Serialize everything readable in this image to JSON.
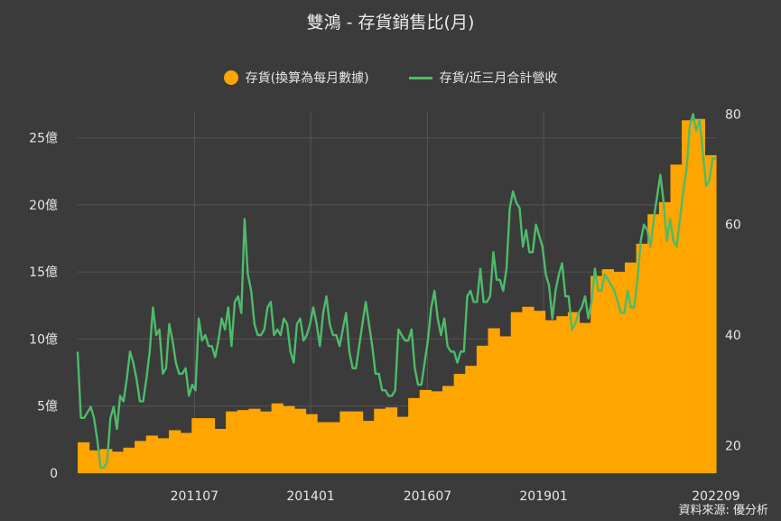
{
  "chart_data": {
    "type": "bar+line",
    "title": "雙鴻 - 存貨銷售比(月)",
    "source": "資料來源: 優分析",
    "colors": {
      "bar": "#ffa500",
      "line": "#4dbb6a",
      "background": "#3b3b3b",
      "grid": "#555555"
    },
    "legend": {
      "position": "top-center",
      "items": [
        "存貨(換算為每月數據)",
        "存貨/近三月合計營收"
      ]
    },
    "x_tick_labels": [
      "201107",
      "201401",
      "201607",
      "201901",
      "202209"
    ],
    "y_left": {
      "range": [
        0,
        28
      ],
      "ticks": [
        0,
        5,
        10,
        15,
        20,
        25
      ],
      "tick_labels": [
        "0",
        "5億",
        "10億",
        "15億",
        "20億",
        "25億"
      ]
    },
    "y_right": {
      "range": [
        15,
        83
      ],
      "ticks": [
        20,
        40,
        60,
        80
      ],
      "tick_labels": [
        "20",
        "40",
        "60",
        "80"
      ]
    },
    "series": [
      {
        "name": "存貨(換算為每月數據)",
        "kind": "bar-quarterly",
        "axis": "left",
        "values": [
          2.3,
          1.7,
          1.8,
          1.6,
          1.9,
          2.4,
          2.8,
          2.6,
          3.2,
          3.0,
          4.1,
          4.1,
          3.3,
          4.6,
          4.7,
          4.8,
          4.6,
          5.2,
          5.0,
          4.8,
          4.4,
          3.8,
          3.8,
          4.6,
          4.6,
          3.9,
          4.8,
          4.9,
          4.2,
          5.6,
          6.2,
          6.1,
          6.5,
          7.4,
          8.0,
          9.5,
          10.8,
          10.2,
          12.0,
          12.4,
          12.1,
          11.4,
          11.7,
          12.0,
          11.2,
          14.7,
          15.2,
          15.0,
          15.7,
          17.1,
          19.3,
          20.2,
          23.0,
          26.3,
          26.4,
          23.7
        ]
      },
      {
        "name": "存貨/近三月合計營收",
        "kind": "line-monthly",
        "axis": "right",
        "values": [
          37,
          25,
          25,
          26,
          27,
          25,
          21,
          16,
          16,
          17,
          25,
          27,
          23,
          29,
          28,
          32,
          37,
          35,
          32,
          28,
          28,
          32,
          37,
          45,
          40,
          41,
          33,
          34,
          42,
          39,
          35,
          33,
          33,
          34,
          29,
          31,
          30,
          43,
          39,
          40,
          38,
          38,
          36,
          39,
          43,
          41,
          45,
          38,
          46,
          47,
          44,
          61,
          51,
          48,
          42,
          40,
          40,
          41,
          45,
          46,
          40,
          41,
          40,
          43,
          42,
          37,
          35,
          42,
          43,
          39,
          40,
          42,
          45,
          42,
          38,
          44,
          47,
          42,
          40,
          40,
          38,
          41,
          44,
          37,
          34,
          34,
          38,
          42,
          46,
          42,
          38,
          33,
          33,
          30,
          30,
          29,
          29,
          30,
          41,
          40,
          39,
          39,
          41,
          34,
          31,
          31,
          35,
          39,
          45,
          48,
          43,
          40,
          43,
          38,
          37,
          37,
          35,
          37,
          37,
          47,
          48,
          46,
          46,
          52,
          46,
          46,
          47,
          55,
          50,
          50,
          48,
          52,
          63,
          66,
          64,
          63,
          56,
          59,
          55,
          55,
          60,
          58,
          56,
          51,
          49,
          43,
          48,
          51,
          53,
          47,
          47,
          41,
          42,
          44,
          45,
          47,
          43,
          46,
          52,
          48,
          48,
          51,
          50,
          49,
          48,
          46,
          44,
          44,
          48,
          45,
          45,
          50,
          57,
          60,
          59,
          56,
          61,
          65,
          69,
          64,
          57,
          61,
          57,
          56,
          61,
          66,
          70,
          78,
          80,
          77,
          79,
          73,
          67,
          68,
          72,
          72
        ]
      }
    ]
  }
}
